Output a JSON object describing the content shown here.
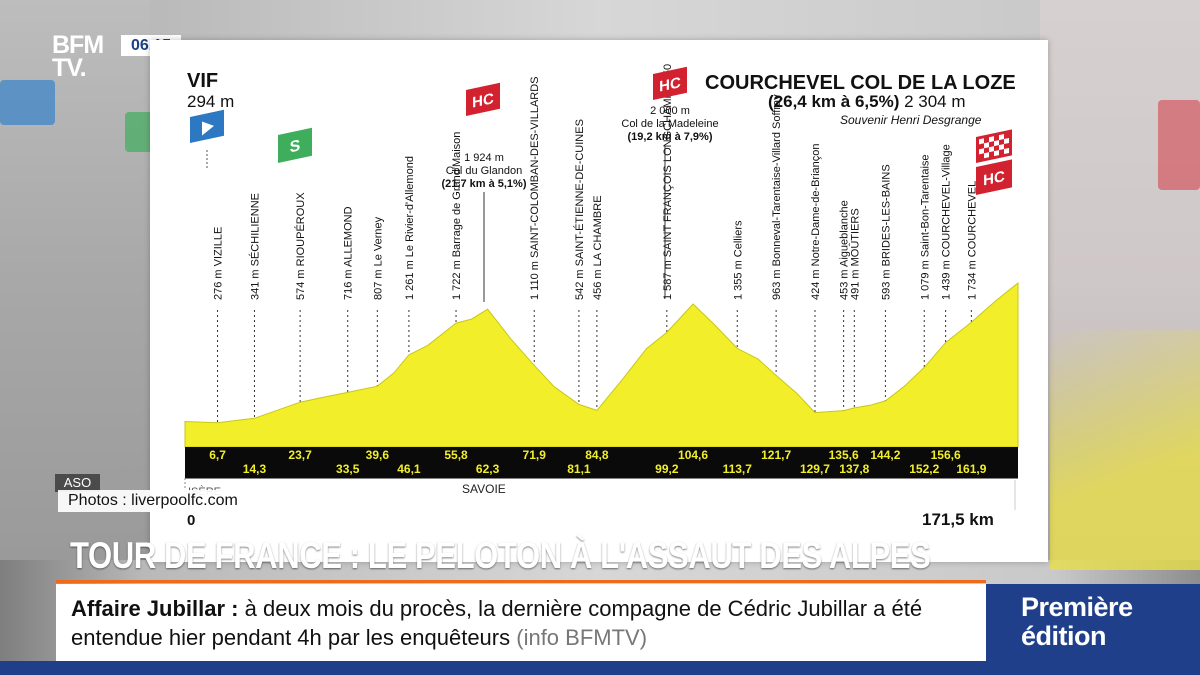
{
  "broadcast": {
    "logo_line1": "BFM",
    "logo_line2": "TV.",
    "clock": "06.15"
  },
  "profile": {
    "start_name": "VIF",
    "start_altitude": "294 m",
    "finish_name": "COURCHEVEL  COL DE LA LOZE",
    "finish_climb": "(26,4 km à 6,5%)",
    "finish_altitude": "2 304 m",
    "finish_note": "Souvenir Henri Desgrange",
    "distance_start": "0",
    "distance_end": "171,5 km",
    "regions": [
      "ISÈRE",
      "SAVOIE"
    ],
    "colors": {
      "profile_fill": "#f2ef2a",
      "km_band": "#0a0a0a",
      "hc_badge": "#d3222f",
      "sprint_badge": "#3fae5c",
      "start_badge": "#2c78c2"
    },
    "climbs": [
      {
        "badge": "HC",
        "altitude": "1 924 m",
        "name": "Col du Glandon",
        "detail": "(21,7 km à 5,1%)"
      },
      {
        "badge": "HC",
        "altitude": "2 000 m",
        "name": "Col de la Madeleine",
        "detail": "(19,2 km à 7,9%)"
      }
    ],
    "waypoints": [
      {
        "km": "6,7",
        "label": "276 m VIZILLE"
      },
      {
        "km": "14,3",
        "label": "341 m SÉCHILIENNE"
      },
      {
        "km": "23,7",
        "label": "574 m RIOUPÉROUX"
      },
      {
        "km": "33,5",
        "label": "716 m ALLEMOND"
      },
      {
        "km": "39,6",
        "label": "807 m Le Verney"
      },
      {
        "km": "46,1",
        "label": "1 261 m Le Rivier-d'Allemond"
      },
      {
        "km": "55,8",
        "label": "1 722 m Barrage de Grand'Maison"
      },
      {
        "km": "62,3",
        "label": ""
      },
      {
        "km": "71,9",
        "label": "1 110 m SAINT-COLOMBAN-DES-VILLARDS"
      },
      {
        "km": "81,1",
        "label": "542 m SAINT-ÉTIENNE-DE-CUINES"
      },
      {
        "km": "84,8",
        "label": "456 m LA CHAMBRE"
      },
      {
        "km": "99,2",
        "label": "1 587 m SAINT FRANÇOIS LONGCHAMP 1650"
      },
      {
        "km": "104,6",
        "label": ""
      },
      {
        "km": "113,7",
        "label": "1 355 m Celliers"
      },
      {
        "km": "121,7",
        "label": "963 m Bonneval-Tarentaise-Villard Soffray"
      },
      {
        "km": "129,7",
        "label": "424 m Notre-Dame-de-Briançon"
      },
      {
        "km": "135,6",
        "label": "453 m Aigueblanche"
      },
      {
        "km": "137,8",
        "label": "491 m MOÛTIERS"
      },
      {
        "km": "144,2",
        "label": "593 m BRIDES-LES-BAINS"
      },
      {
        "km": "152,2",
        "label": "1 079 m Saint-Bon-Tarentaise"
      },
      {
        "km": "156,6",
        "label": "1 439 m COURCHEVEL-Village"
      },
      {
        "km": "161,9",
        "label": "1 734 m COURCHEVEL"
      }
    ]
  },
  "overlays": {
    "aso": "ASO",
    "photo_credit": "Photos : liverpoolfc.com",
    "headline": "TOUR DE FRANCE : LE PELOTON À L'ASSAUT DES ALPES"
  },
  "ticker": {
    "title": "Affaire Jubillar :",
    "text": "à deux mois du procès, la dernière compagne de Cédric Jubillar a été entendue hier pendant 4h par les enquêteurs",
    "source": "(info BFMTV)"
  },
  "edition": {
    "line1": "Première",
    "line2": "édition"
  }
}
